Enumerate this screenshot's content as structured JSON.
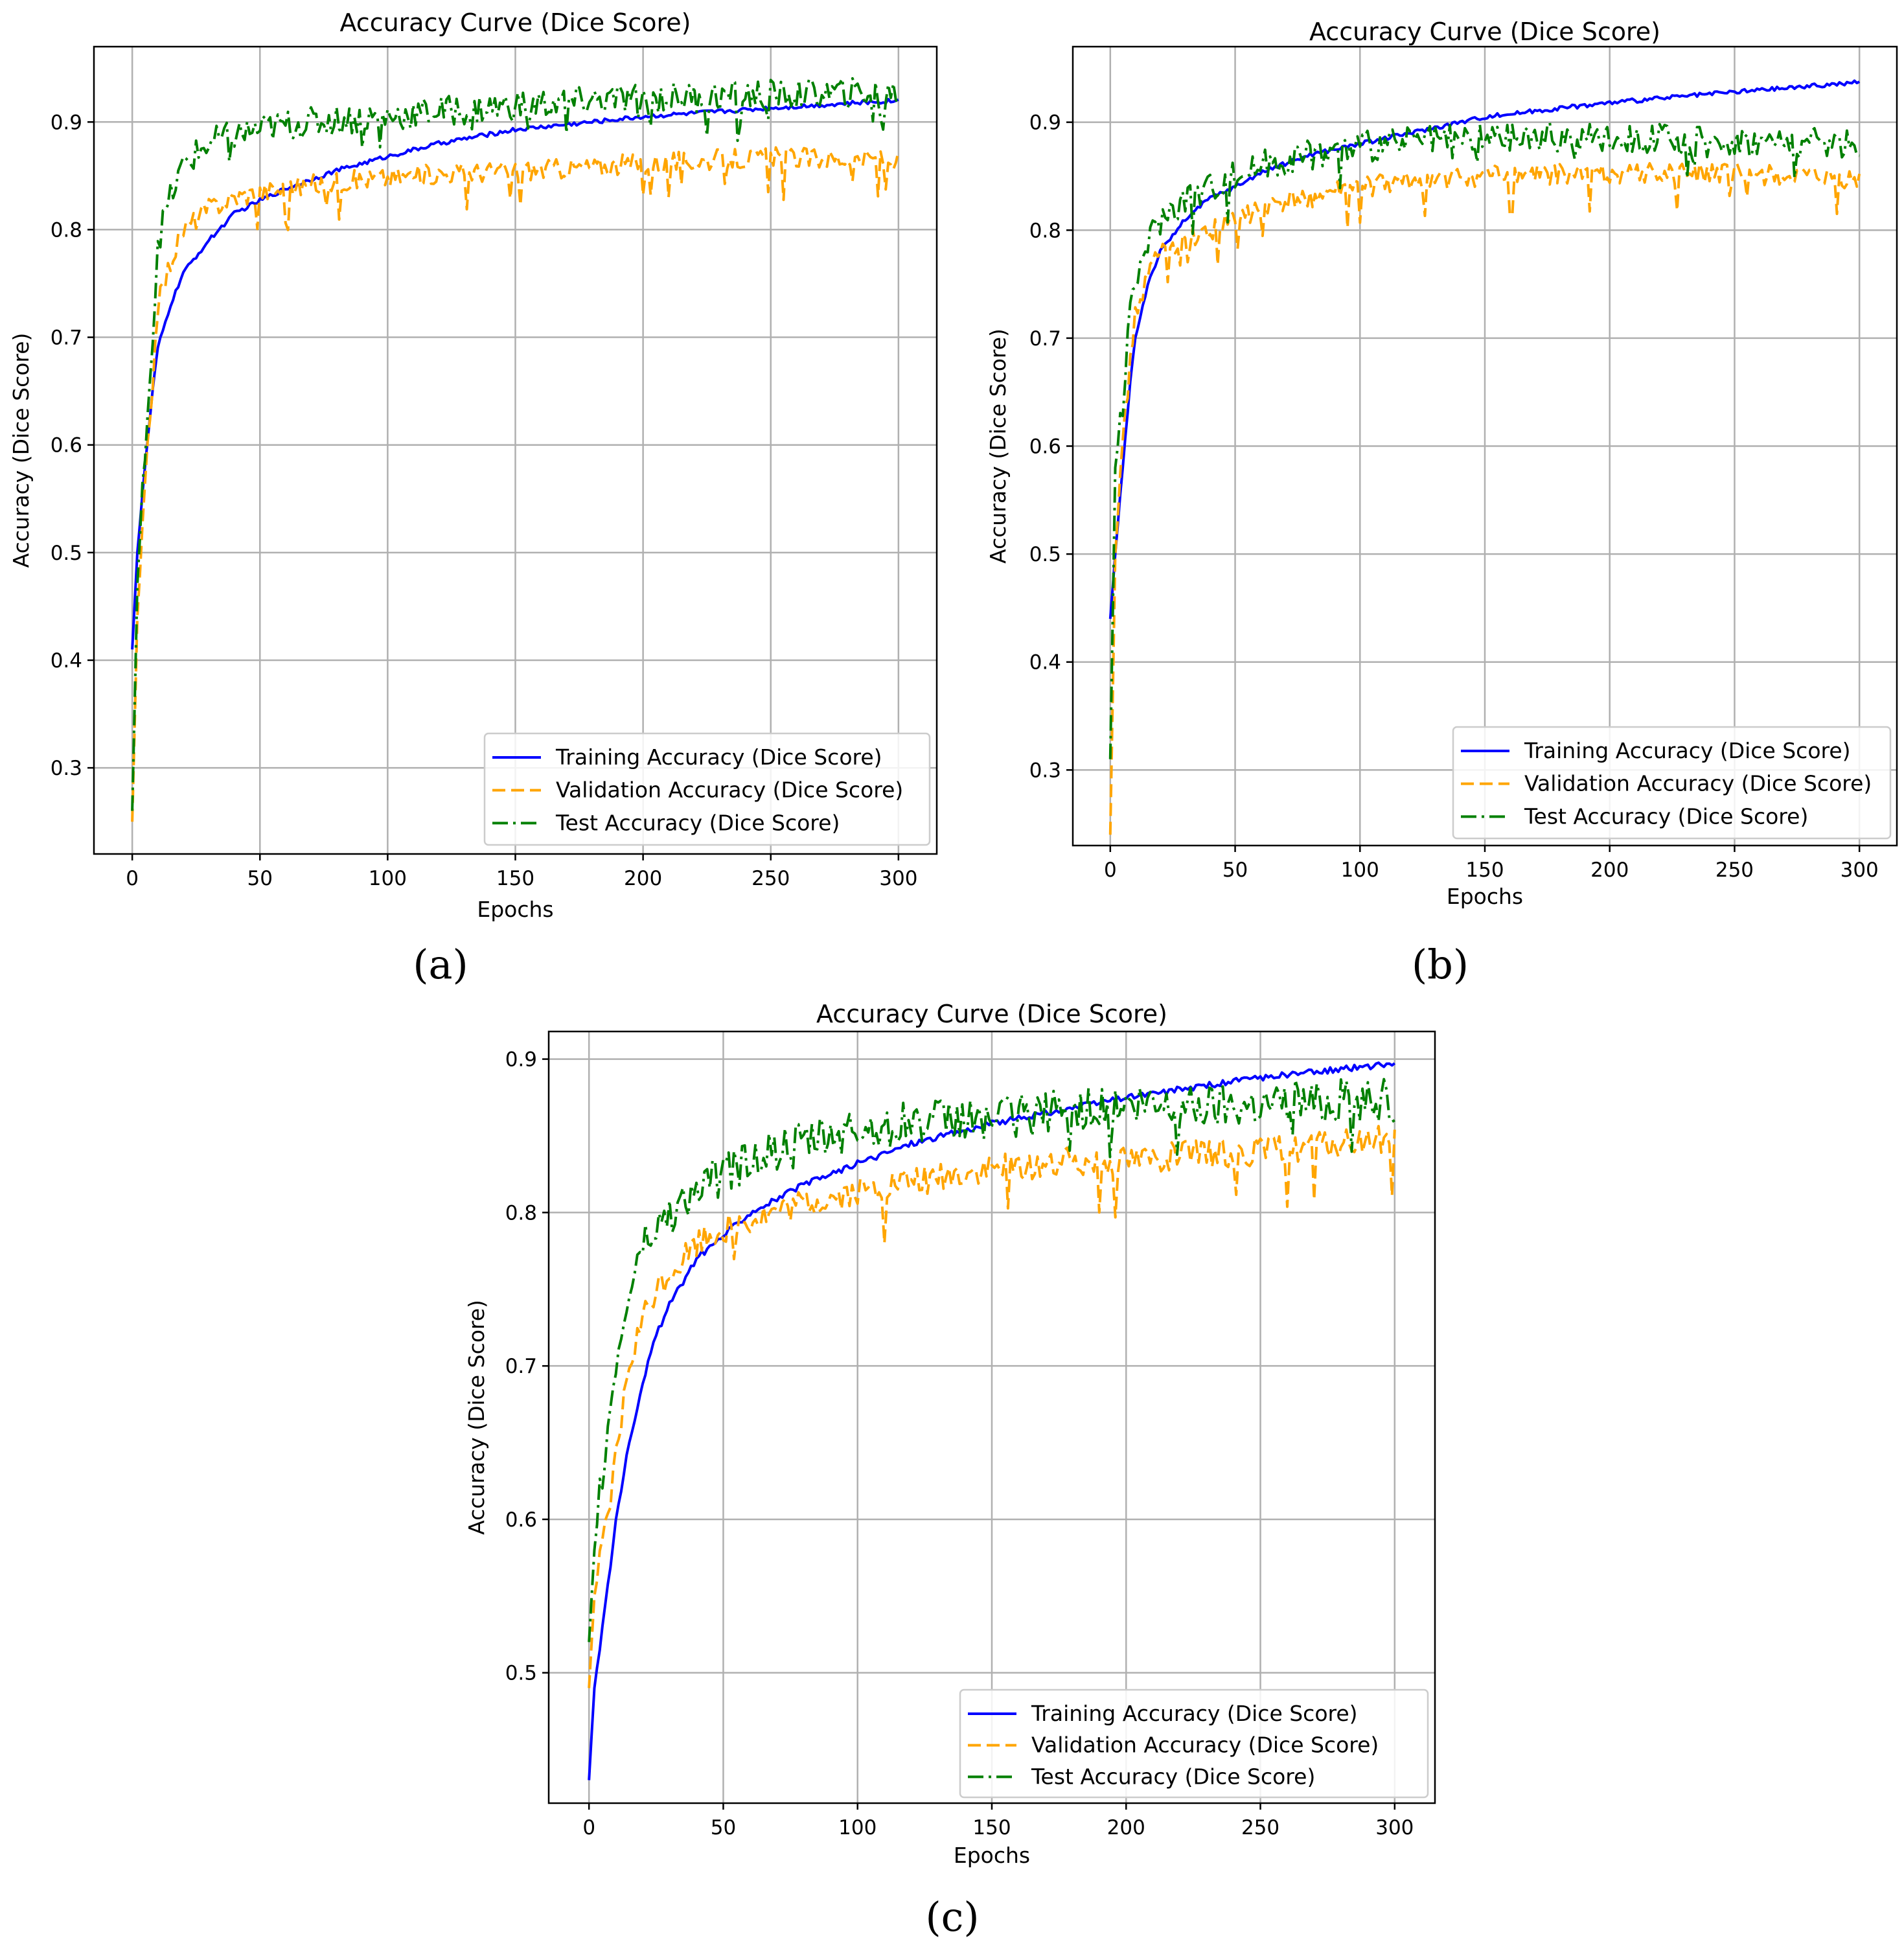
{
  "chart_data": [
    {
      "type": "line",
      "panel_label": "(a)",
      "title": "Accuracy Curve (Dice Score)",
      "xlabel": "Epochs",
      "ylabel": "Accuracy (Dice Score)",
      "xlim": [
        -15,
        315
      ],
      "ylim": [
        0.22,
        0.97
      ],
      "xticks": [
        0,
        50,
        100,
        150,
        200,
        250,
        300
      ],
      "yticks": [
        0.3,
        0.4,
        0.5,
        0.6,
        0.7,
        0.8,
        0.9
      ],
      "ytick_labels": [
        "0.3",
        "0.4",
        "0.5",
        "0.6",
        "0.7",
        "0.8",
        "0.9"
      ],
      "grid": true,
      "legend_position": "lower-right",
      "series": [
        {
          "name": "Training Accuracy (Dice Score)",
          "color": "#0000ff",
          "style": "solid",
          "x": [
            0,
            2,
            5,
            8,
            10,
            15,
            20,
            30,
            40,
            50,
            60,
            80,
            100,
            120,
            150,
            180,
            200,
            250,
            300
          ],
          "values": [
            0.41,
            0.5,
            0.58,
            0.65,
            0.69,
            0.73,
            0.76,
            0.79,
            0.815,
            0.827,
            0.838,
            0.855,
            0.868,
            0.88,
            0.893,
            0.9,
            0.905,
            0.913,
            0.92
          ]
        },
        {
          "name": "Validation Accuracy (Dice Score)",
          "color": "#ffa500",
          "style": "dashed",
          "x": [
            0,
            2,
            5,
            8,
            10,
            15,
            20,
            30,
            40,
            50,
            60,
            80,
            100,
            120,
            150,
            180,
            200,
            250,
            300
          ],
          "values": [
            0.25,
            0.44,
            0.56,
            0.66,
            0.73,
            0.77,
            0.8,
            0.82,
            0.83,
            0.835,
            0.838,
            0.845,
            0.848,
            0.852,
            0.855,
            0.858,
            0.862,
            0.867,
            0.865
          ]
        },
        {
          "name": "Test Accuracy (Dice Score)",
          "color": "#008000",
          "style": "dashdot",
          "x": [
            0,
            2,
            5,
            8,
            10,
            15,
            20,
            30,
            40,
            50,
            60,
            80,
            100,
            120,
            150,
            180,
            200,
            250,
            300
          ],
          "values": [
            0.26,
            0.47,
            0.6,
            0.7,
            0.79,
            0.83,
            0.86,
            0.88,
            0.888,
            0.893,
            0.897,
            0.902,
            0.905,
            0.91,
            0.915,
            0.92,
            0.922,
            0.925,
            0.928
          ]
        }
      ]
    },
    {
      "type": "line",
      "panel_label": "(b)",
      "title": "Accuracy Curve (Dice Score)",
      "xlabel": "Epochs",
      "ylabel": "Accuracy (Dice Score)",
      "xlim": [
        -15,
        315
      ],
      "ylim": [
        0.23,
        0.97
      ],
      "xticks": [
        0,
        50,
        100,
        150,
        200,
        250,
        300
      ],
      "yticks": [
        0.3,
        0.4,
        0.5,
        0.6,
        0.7,
        0.8,
        0.9
      ],
      "ytick_labels": [
        "0.3",
        "0.4",
        "0.5",
        "0.6",
        "0.7",
        "0.8",
        "0.9"
      ],
      "grid": true,
      "legend_position": "lower-right",
      "series": [
        {
          "name": "Training Accuracy (Dice Score)",
          "color": "#0000ff",
          "style": "solid",
          "x": [
            0,
            2,
            5,
            8,
            10,
            15,
            20,
            30,
            40,
            50,
            60,
            80,
            100,
            120,
            150,
            180,
            200,
            250,
            300
          ],
          "values": [
            0.44,
            0.5,
            0.58,
            0.66,
            0.7,
            0.75,
            0.78,
            0.81,
            0.83,
            0.84,
            0.853,
            0.87,
            0.88,
            0.89,
            0.905,
            0.913,
            0.918,
            0.928,
            0.937
          ]
        },
        {
          "name": "Validation Accuracy (Dice Score)",
          "color": "#ffa500",
          "style": "dashed",
          "x": [
            0,
            2,
            5,
            8,
            10,
            15,
            20,
            30,
            40,
            50,
            60,
            80,
            100,
            120,
            150,
            180,
            200,
            250,
            300
          ],
          "values": [
            0.24,
            0.5,
            0.6,
            0.68,
            0.72,
            0.76,
            0.78,
            0.79,
            0.8,
            0.81,
            0.82,
            0.83,
            0.84,
            0.845,
            0.85,
            0.852,
            0.853,
            0.853,
            0.845
          ]
        },
        {
          "name": "Test Accuracy (Dice Score)",
          "color": "#008000",
          "style": "dashdot",
          "x": [
            0,
            2,
            5,
            8,
            10,
            15,
            20,
            30,
            40,
            50,
            60,
            80,
            100,
            120,
            150,
            180,
            200,
            250,
            300
          ],
          "values": [
            0.31,
            0.58,
            0.64,
            0.72,
            0.75,
            0.79,
            0.81,
            0.83,
            0.84,
            0.85,
            0.86,
            0.87,
            0.877,
            0.882,
            0.885,
            0.886,
            0.885,
            0.883,
            0.88
          ]
        }
      ]
    },
    {
      "type": "line",
      "panel_label": "(c)",
      "title": "Accuracy Curve (Dice Score)",
      "xlabel": "Epochs",
      "ylabel": "Accuracy (Dice Score)",
      "xlim": [
        -15,
        315
      ],
      "ylim": [
        0.415,
        0.918
      ],
      "xticks": [
        0,
        50,
        100,
        150,
        200,
        250,
        300
      ],
      "yticks": [
        0.5,
        0.6,
        0.7,
        0.8,
        0.9
      ],
      "ytick_labels": [
        "0.5",
        "0.6",
        "0.7",
        "0.8",
        "0.9"
      ],
      "grid": true,
      "legend_position": "lower-right",
      "series": [
        {
          "name": "Training Accuracy (Dice Score)",
          "color": "#0000ff",
          "style": "solid",
          "x": [
            0,
            2,
            5,
            8,
            10,
            15,
            20,
            25,
            30,
            40,
            50,
            60,
            80,
            100,
            120,
            150,
            180,
            200,
            250,
            300
          ],
          "values": [
            0.43,
            0.49,
            0.53,
            0.57,
            0.6,
            0.65,
            0.69,
            0.72,
            0.74,
            0.77,
            0.785,
            0.8,
            0.818,
            0.832,
            0.845,
            0.858,
            0.868,
            0.875,
            0.888,
            0.897
          ]
        },
        {
          "name": "Validation Accuracy (Dice Score)",
          "color": "#ffa500",
          "style": "dashed",
          "x": [
            0,
            2,
            5,
            8,
            10,
            15,
            20,
            25,
            30,
            40,
            50,
            60,
            80,
            100,
            120,
            150,
            180,
            200,
            250,
            300
          ],
          "values": [
            0.49,
            0.55,
            0.58,
            0.61,
            0.64,
            0.7,
            0.73,
            0.75,
            0.76,
            0.78,
            0.79,
            0.795,
            0.805,
            0.813,
            0.82,
            0.828,
            0.833,
            0.835,
            0.84,
            0.848
          ]
        },
        {
          "name": "Test Accuracy (Dice Score)",
          "color": "#008000",
          "style": "dashdot",
          "x": [
            0,
            2,
            5,
            8,
            10,
            15,
            20,
            25,
            30,
            40,
            50,
            60,
            80,
            100,
            120,
            150,
            180,
            200,
            250,
            300
          ],
          "values": [
            0.52,
            0.58,
            0.63,
            0.67,
            0.7,
            0.75,
            0.78,
            0.79,
            0.8,
            0.815,
            0.825,
            0.835,
            0.845,
            0.853,
            0.858,
            0.862,
            0.866,
            0.868,
            0.872,
            0.873
          ]
        }
      ]
    }
  ]
}
